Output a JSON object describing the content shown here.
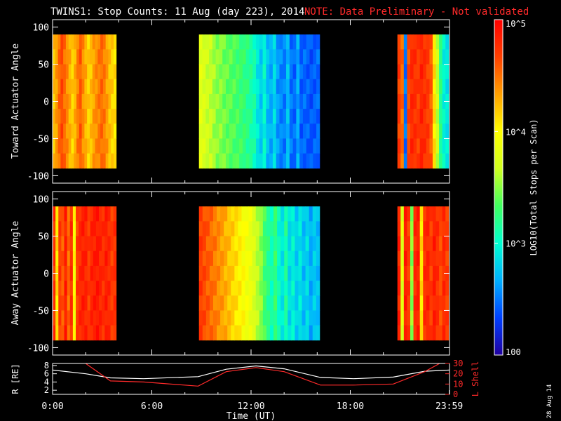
{
  "title": {
    "main": "TWINS1: Stop Counts: 11 Aug (day 223), 2014",
    "note": "NOTE: Data Preliminary - Not validated"
  },
  "stamp": "28 Aug 14",
  "colors": {
    "background": "#000000",
    "axis": "#ffffff",
    "note": "#ff2a2a",
    "r_line": "#ffffff",
    "lshell_line": "#ff2a2a"
  },
  "colorbar": {
    "label": "LOG10(Total Stops per Scan)",
    "scale": "log",
    "range": [
      100,
      100000
    ],
    "ticks": [
      {
        "value": 100,
        "label": "100"
      },
      {
        "value": 1000,
        "label": "10^3"
      },
      {
        "value": 10000,
        "label": "10^4"
      },
      {
        "value": 100000,
        "label": "10^5"
      }
    ],
    "colormap": [
      "#2000a0",
      "#0040ff",
      "#00b0ff",
      "#00ffd0",
      "#40ff60",
      "#d0ff20",
      "#ffff00",
      "#ffa000",
      "#ff4000",
      "#ff0000"
    ]
  },
  "chart_data": [
    {
      "type": "heatmap",
      "ylabel": "Toward Actuator Angle",
      "ylim": [
        -110,
        110
      ],
      "y_ticks": [
        100,
        50,
        0,
        -50,
        -100
      ],
      "xlim_hours": [
        0,
        24
      ],
      "data_angle_range": [
        -90,
        90
      ],
      "segments": [
        {
          "start_hour": 0.0,
          "end_hour": 3.85,
          "profile": [
            0.74,
            0.78,
            0.84,
            0.88,
            0.84,
            0.8,
            0.76,
            0.72,
            0.76,
            0.82,
            0.86,
            0.8,
            0.76,
            0.72,
            0.74,
            0.78,
            0.8,
            0.82,
            0.84,
            0.82,
            0.78,
            0.74,
            0.72,
            0.7
          ]
        },
        {
          "start_hour": 8.85,
          "end_hour": 16.15,
          "profile": [
            0.6,
            0.58,
            0.56,
            0.55,
            0.52,
            0.5,
            0.5,
            0.48,
            0.47,
            0.46,
            0.45,
            0.44,
            0.43,
            0.42,
            0.4,
            0.38,
            0.36,
            0.3,
            0.26,
            0.33,
            0.24,
            0.22,
            0.28,
            0.2,
            0.18,
            0.17,
            0.24,
            0.16,
            0.15,
            0.22,
            0.14,
            0.15,
            0.14,
            0.13,
            0.14,
            0.15
          ]
        },
        {
          "start_hour": 20.85,
          "end_hour": 23.95,
          "profile": [
            0.9,
            0.84,
            0.16,
            0.88,
            0.93,
            0.92,
            0.9,
            0.94,
            0.92,
            0.9,
            0.86,
            0.7,
            0.55,
            0.4,
            0.32,
            0.3
          ]
        }
      ]
    },
    {
      "type": "heatmap",
      "ylabel": "Away Actuator Angle",
      "ylim": [
        -110,
        110
      ],
      "y_ticks": [
        100,
        50,
        0,
        -50,
        -100
      ],
      "xlim_hours": [
        0,
        24
      ],
      "data_angle_range": [
        -90,
        90
      ],
      "segments": [
        {
          "start_hour": 0.0,
          "end_hour": 3.85,
          "profile": [
            0.92,
            0.7,
            0.9,
            0.86,
            0.95,
            0.84,
            0.92,
            0.66,
            0.9,
            0.93,
            0.95,
            0.94,
            0.9,
            0.94,
            0.95,
            0.96,
            0.94,
            0.92,
            0.95,
            0.93,
            0.9,
            0.92
          ]
        },
        {
          "start_hour": 8.85,
          "end_hour": 16.15,
          "profile": [
            0.9,
            0.88,
            0.86,
            0.84,
            0.82,
            0.8,
            0.78,
            0.76,
            0.74,
            0.72,
            0.7,
            0.68,
            0.66,
            0.64,
            0.62,
            0.58,
            0.54,
            0.5,
            0.44,
            0.4,
            0.36,
            0.42,
            0.34,
            0.3,
            0.38,
            0.28,
            0.32,
            0.26,
            0.3,
            0.24,
            0.28,
            0.22,
            0.26,
            0.24
          ]
        },
        {
          "start_hour": 20.85,
          "end_hour": 23.95,
          "profile": [
            0.94,
            0.6,
            0.95,
            0.9,
            0.5,
            0.93,
            0.95,
            0.7,
            0.92,
            0.94,
            0.9,
            0.95,
            0.92,
            0.88,
            0.93,
            0.9
          ]
        }
      ]
    },
    {
      "type": "line",
      "xlabel": "Time (UT)",
      "x_ticks": [
        "0:00",
        "6:00",
        "12:00",
        "18:00",
        "23:59"
      ],
      "x_tick_hours": [
        0,
        6,
        12,
        18,
        23.983
      ],
      "xlim_hours": [
        0,
        24
      ],
      "left_axis": {
        "label": "R [RE]",
        "ylim": [
          1,
          8.5
        ],
        "ticks": [
          2,
          4,
          6,
          8
        ]
      },
      "right_axis": {
        "label": "L Shell",
        "ylim": [
          0,
          30
        ],
        "ticks": [
          0,
          10,
          20,
          30
        ]
      },
      "series": [
        {
          "axis": "left",
          "color": "#ffffff",
          "x": [
            0,
            2,
            3.5,
            5.5,
            8.8,
            10.5,
            12.3,
            14,
            16.2,
            18.2,
            20.6,
            22.5,
            24
          ],
          "y": [
            6.9,
            6.0,
            5.0,
            4.8,
            5.3,
            7.1,
            7.9,
            7.2,
            5.1,
            4.8,
            5.2,
            6.6,
            6.9
          ]
        },
        {
          "axis": "right",
          "color": "#ff2a2a",
          "x": [
            2.0,
            3.5,
            5.5,
            8.8,
            10.5,
            12.3,
            14,
            16.2,
            18.2,
            20.6,
            22.5,
            23.4
          ],
          "y": [
            30,
            13,
            12,
            8,
            22,
            26,
            22,
            9,
            9,
            10,
            22,
            30
          ]
        }
      ]
    }
  ]
}
